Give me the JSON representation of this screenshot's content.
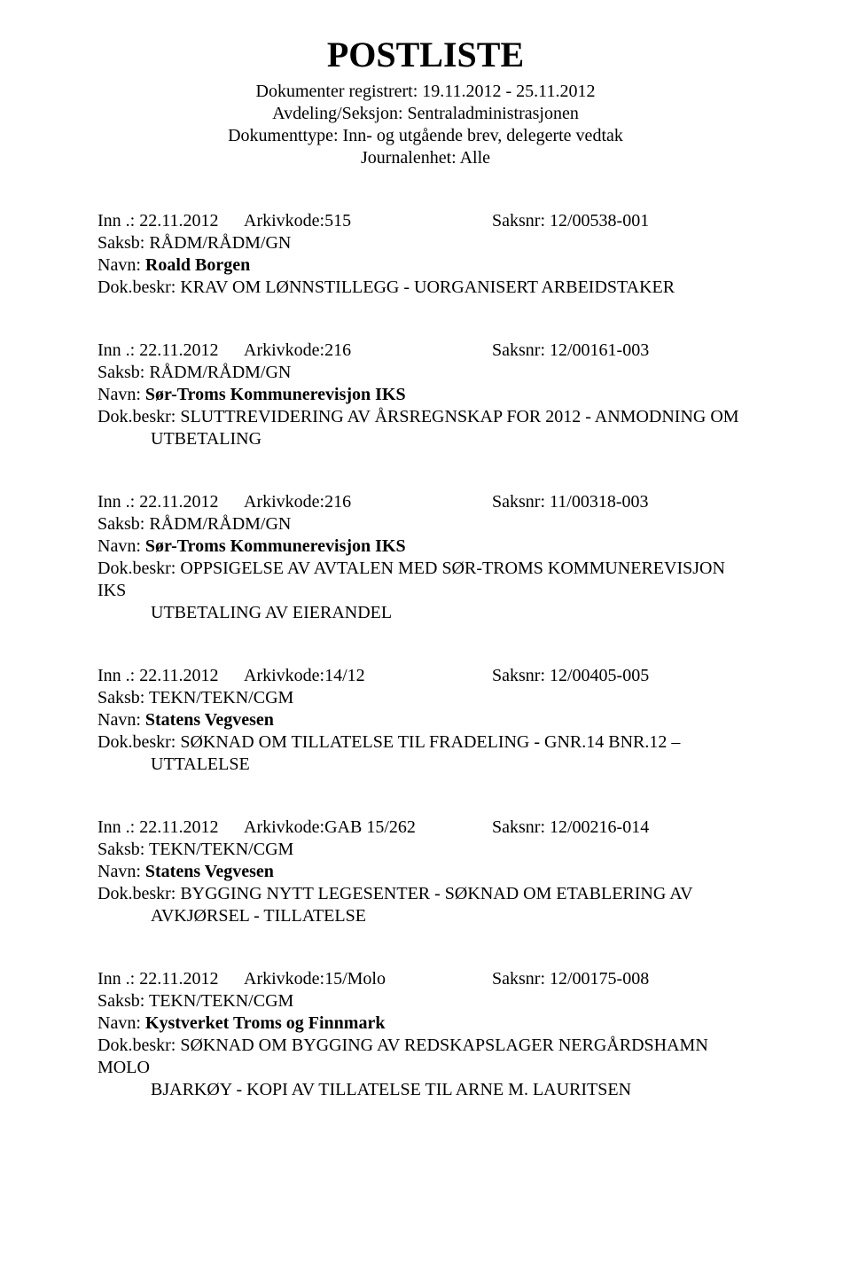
{
  "title": "POSTLISTE",
  "header": {
    "line1": "Dokumenter registrert: 19.11.2012 - 25.11.2012",
    "line2": "Avdeling/Seksjon: Sentraladministrasjonen",
    "line3": "Dokumenttype: Inn- og utgående brev, delegerte vedtak",
    "line4": "Journalenhet: Alle"
  },
  "labels": {
    "inn": "Inn .: ",
    "arkiv": "Arkivkode:",
    "saksnr": "Saksnr: ",
    "saksb": "Saksb:  ",
    "navn": "Navn:   ",
    "beskr": "Dok.beskr: "
  },
  "entries": [
    {
      "date": "22.11.2012",
      "arkivkode": "515",
      "saksnr": "12/00538-001",
      "saksb": "RÅDM/RÅDM/GN",
      "navn": "Roald Borgen",
      "beskr": "KRAV OM LØNNSTILLEGG - UORGANISERT ARBEIDSTAKER",
      "beskr2": ""
    },
    {
      "date": "22.11.2012",
      "arkivkode": "216",
      "saksnr": "12/00161-003",
      "saksb": "RÅDM/RÅDM/GN",
      "navn": "Sør-Troms Kommunerevisjon IKS",
      "beskr": "SLUTTREVIDERING AV ÅRSREGNSKAP FOR 2012 - ANMODNING OM",
      "beskr2": "UTBETALING"
    },
    {
      "date": "22.11.2012",
      "arkivkode": "216",
      "saksnr": "11/00318-003",
      "saksb": "RÅDM/RÅDM/GN",
      "navn": "Sør-Troms Kommunerevisjon IKS",
      "beskr": "OPPSIGELSE AV AVTALEN MED SØR-TROMS KOMMUNEREVISJON IKS",
      "beskr2": "UTBETALING AV EIERANDEL"
    },
    {
      "date": "22.11.2012",
      "arkivkode": "14/12",
      "saksnr": "12/00405-005",
      "saksb": "TEKN/TEKN/CGM",
      "navn": "Statens Vegvesen",
      "beskr": "SØKNAD OM TILLATELSE TIL FRADELING - GNR.14 BNR.12 –",
      "beskr2": "UTTALELSE"
    },
    {
      "date": "22.11.2012",
      "arkivkode": "GAB 15/262",
      "saksnr": "12/00216-014",
      "saksb": "TEKN/TEKN/CGM",
      "navn": "Statens Vegvesen",
      "beskr": "BYGGING NYTT LEGESENTER - SØKNAD OM ETABLERING AV",
      "beskr2": "AVKJØRSEL  - TILLATELSE"
    },
    {
      "date": "22.11.2012",
      "arkivkode": "15/Molo",
      "saksnr": "12/00175-008",
      "saksb": "TEKN/TEKN/CGM",
      "navn": "Kystverket Troms og Finnmark",
      "beskr": "SØKNAD OM BYGGING AV REDSKAPSLAGER NERGÅRDSHAMN MOLO",
      "beskr2": "BJARKØY - KOPI AV TILLATELSE TIL ARNE M. LAURITSEN"
    }
  ]
}
